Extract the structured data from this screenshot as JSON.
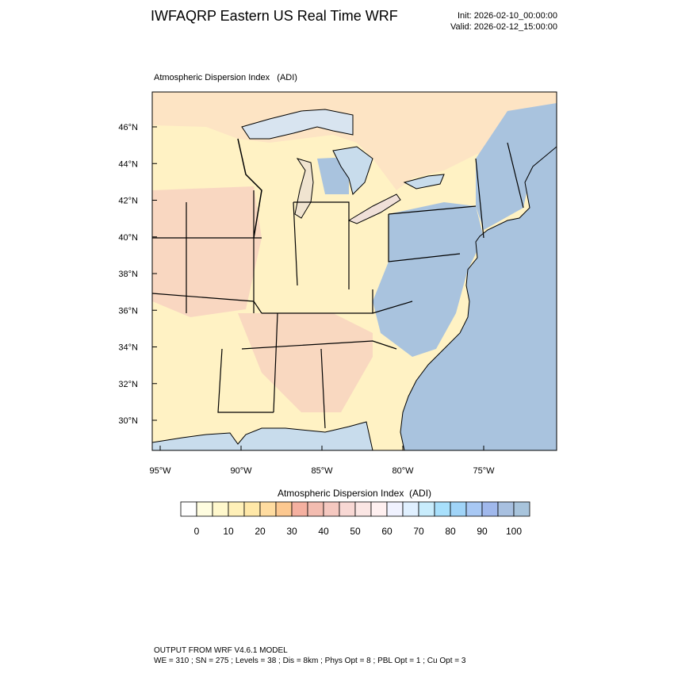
{
  "header": {
    "title": "IWFAQRP Eastern US Real Time WRF",
    "init": "Init: 2026-02-10_00:00:00",
    "valid": "Valid: 2026-02-12_15:00:00"
  },
  "map": {
    "subtitle": "Atmospheric Dispersion Index   (ADI)",
    "lat_labels": [
      "46°N",
      "44°N",
      "42°N",
      "40°N",
      "38°N",
      "36°N",
      "34°N",
      "32°N",
      "30°N"
    ],
    "lon_labels": [
      "95°W",
      "90°W",
      "85°W",
      "80°W",
      "75°W"
    ]
  },
  "colorbar": {
    "title": "Atmospheric Dispersion Index  (ADI)",
    "ticks": [
      0,
      10,
      20,
      30,
      40,
      50,
      60,
      70,
      80,
      90,
      100
    ],
    "colors": [
      "#ffffff",
      "#fffde0",
      "#fff8cc",
      "#fff0b8",
      "#ffe8a8",
      "#ffdca0",
      "#fcc890",
      "#f5b0a0",
      "#f3bcb0",
      "#f5c8c0",
      "#f8d8d4",
      "#fbe6e4",
      "#fff0f0",
      "#f0f2ff",
      "#e0f0ff",
      "#c8ecfc",
      "#a8e0fc",
      "#a0d4f8",
      "#a8c8f4",
      "#a0b8ec",
      "#a8c0e0",
      "#a8c4dc"
    ]
  },
  "footer": {
    "line1": "OUTPUT FROM WRF V4.6.1 MODEL",
    "line2": "WE = 310 ; SN = 275 ; Levels = 38 ; Dis = 8km ; Phys Opt = 8 ; PBL Opt = 1 ; Cu Opt = 3"
  }
}
